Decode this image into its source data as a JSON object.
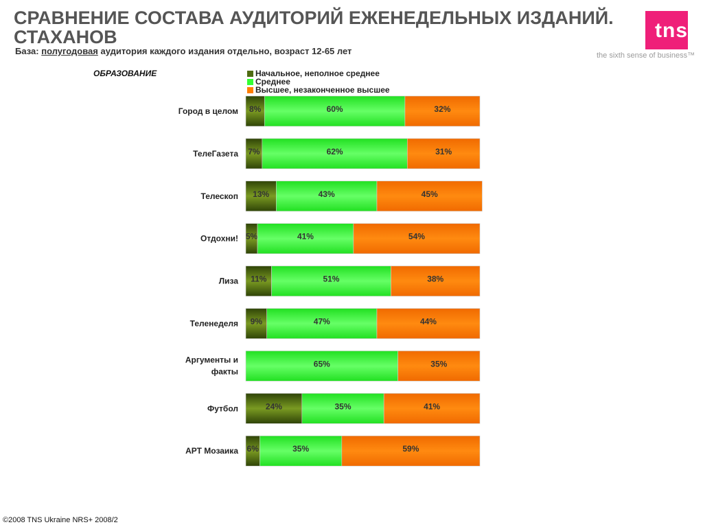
{
  "header": {
    "title_line1": "СРАВНЕНИЕ СОСТАВА АУДИТОРИЙ ЕЖЕНЕДЕЛЬНЫХ ИЗДАНИЙ.",
    "title_line2": "СТАХАНОВ",
    "subtitle_prefix": "База:",
    "subtitle_underlined": "полугодовая",
    "subtitle_rest": "аудитория каждого издания отдельно, возраст 12-65 лет"
  },
  "logo": {
    "text": "tns",
    "tagline": "the sixth sense of business™",
    "color": "#ef1f79"
  },
  "footer": {
    "text": "©2008 TNS Ukraine  NRS+ 2008/2"
  },
  "chart_data": {
    "type": "bar",
    "orientation": "horizontal",
    "stacked": true,
    "percent": true,
    "section_label": "ОБРАЗОВАНИЕ",
    "categories": [
      "Город в целом",
      "ТелеГазета",
      "Телескоп",
      "Отдохни!",
      "Лиза",
      "Теленеделя",
      "Аргументы и факты",
      "Футбол",
      "АРТ Мозаика"
    ],
    "category_lines": [
      [
        "Город в целом"
      ],
      [
        "ТелеГазета"
      ],
      [
        "Телескоп"
      ],
      [
        "Отдохни!"
      ],
      [
        "Лиза"
      ],
      [
        "Теленеделя"
      ],
      [
        "Аргументы и",
        "факты"
      ],
      [
        "Футбол"
      ],
      [
        "АРТ Мозаика"
      ]
    ],
    "series": [
      {
        "name": "Начальное, неполное среднее",
        "color": "#4f6b12",
        "values": [
          8,
          7,
          13,
          5,
          11,
          9,
          0,
          24,
          6
        ]
      },
      {
        "name": "Среднее",
        "color": "#33ff33",
        "values": [
          60,
          62,
          43,
          41,
          51,
          47,
          65,
          35,
          35
        ]
      },
      {
        "name": "Высшее, незаконченное высшее",
        "color": "#ff7f00",
        "values": [
          32,
          31,
          45,
          54,
          38,
          44,
          35,
          41,
          59
        ]
      }
    ],
    "xlim": [
      0,
      100
    ],
    "legend_position": "top",
    "grid": false
  }
}
